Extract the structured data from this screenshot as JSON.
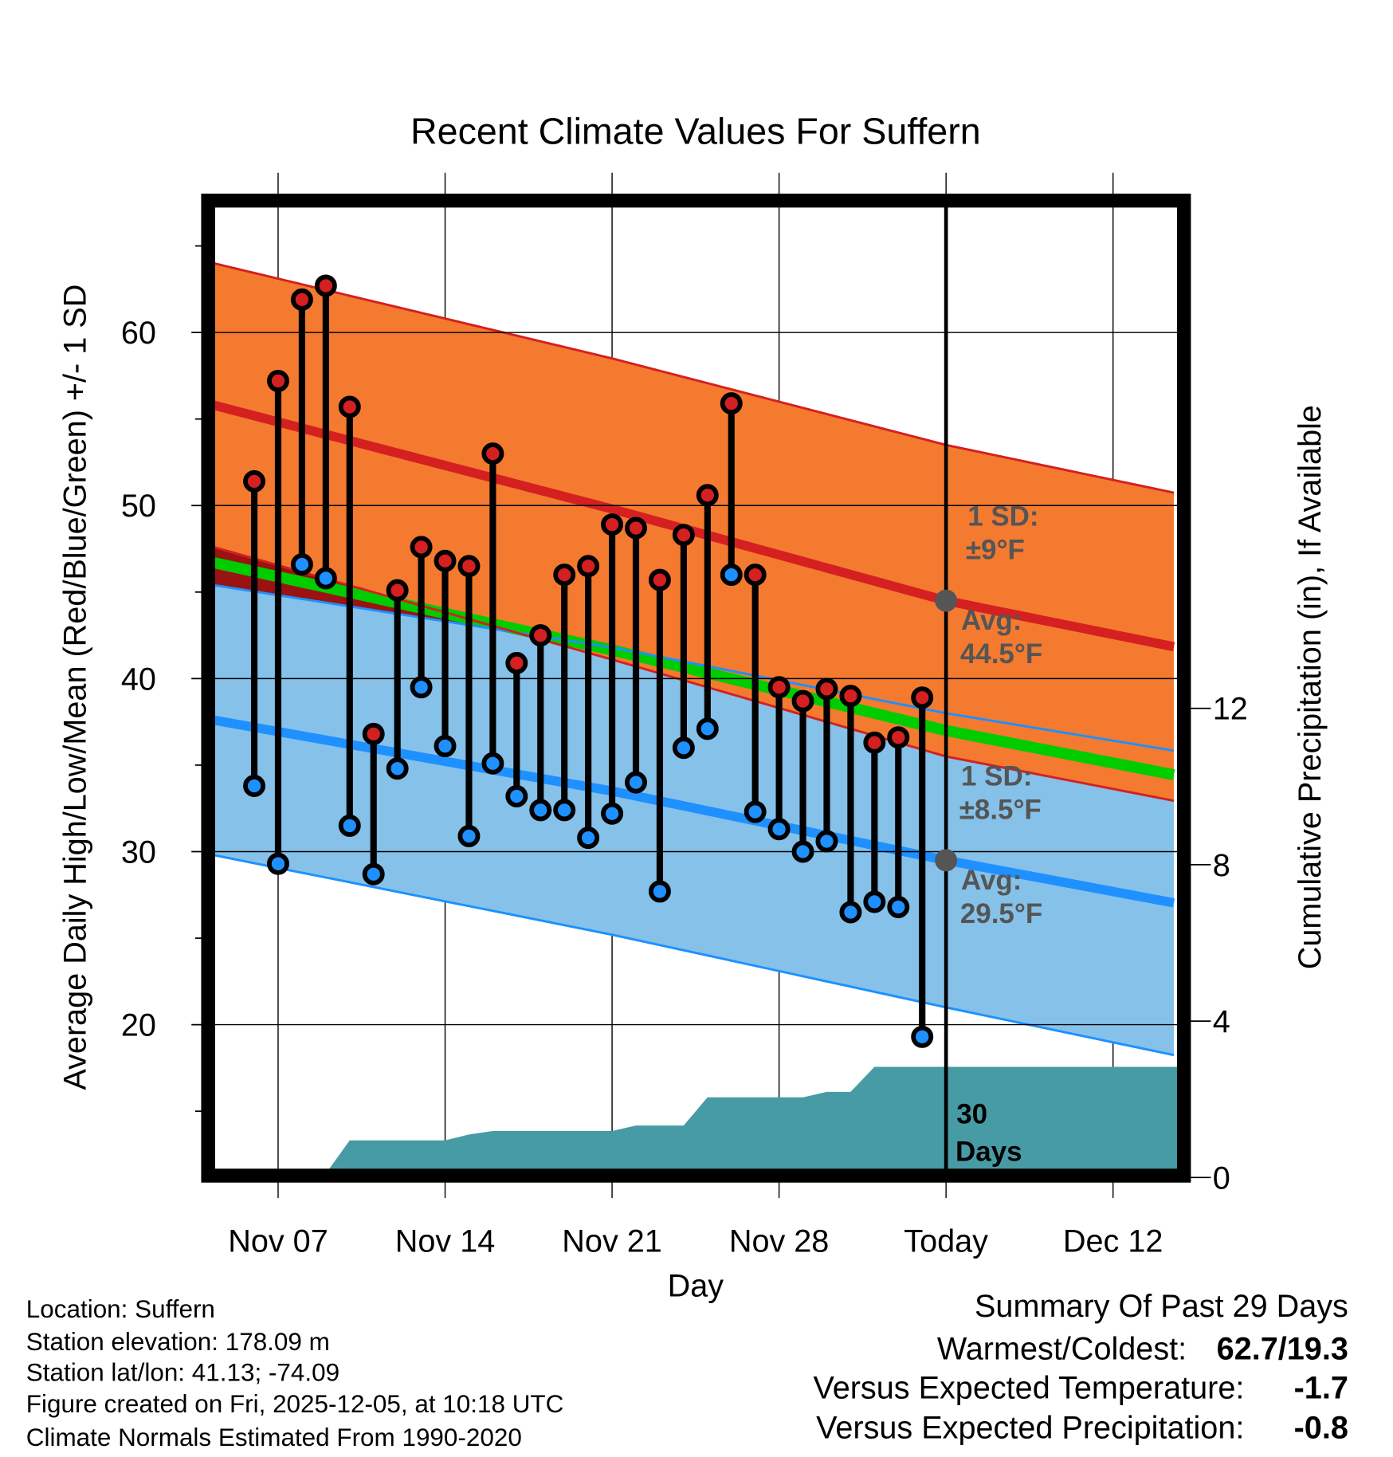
{
  "chart_data": {
    "type": "line",
    "title": "Recent Climate Values For Suffern",
    "xlabel": "Day",
    "ylabel": "Average Daily High/Low/Mean (Red/Blue/Green) +/- 1 SD",
    "y2label": "Cumulative Precipitation (in), If Available",
    "x_unit": "days from Nov 07",
    "xlim": [
      -2.7,
      37.7
    ],
    "ylim": [
      11.6,
      67.3
    ],
    "y2lim": [
      0,
      16
    ],
    "grid": true,
    "x_ticks": [
      {
        "day": 0,
        "label": "Nov 07"
      },
      {
        "day": 7,
        "label": "Nov 14"
      },
      {
        "day": 14,
        "label": "Nov 21"
      },
      {
        "day": 21,
        "label": "Nov 28"
      },
      {
        "day": 28,
        "label": "Today"
      },
      {
        "day": 35,
        "label": "Dec 12"
      }
    ],
    "y_ticks": [
      20,
      30,
      40,
      50,
      60
    ],
    "y_ticks_labels": [
      "20",
      "30",
      "40",
      "50",
      "60"
    ],
    "y2_ticks_labels": [
      "0",
      "4",
      "8",
      "12"
    ],
    "y2_ticks": [
      0,
      4,
      8,
      12
    ],
    "today_day": 28,
    "observations": {
      "days": [
        -1,
        0,
        1,
        2,
        3,
        4,
        5,
        6,
        7,
        8,
        9,
        10,
        11,
        12,
        13,
        14,
        15,
        16,
        17,
        18,
        19,
        20,
        21,
        22,
        23,
        24,
        25,
        26,
        27
      ],
      "high": [
        51.4,
        57.2,
        61.9,
        62.7,
        55.7,
        36.8,
        45.1,
        47.6,
        46.8,
        46.5,
        53.0,
        40.9,
        42.5,
        46.0,
        46.5,
        48.9,
        48.7,
        45.7,
        48.3,
        50.6,
        55.9,
        46.0,
        39.5,
        38.7,
        39.4,
        39.0,
        36.3,
        36.6,
        38.9
      ],
      "low": [
        33.8,
        29.3,
        46.6,
        45.8,
        31.5,
        28.7,
        34.8,
        39.5,
        36.1,
        30.9,
        35.1,
        33.2,
        32.4,
        32.4,
        30.8,
        32.2,
        34.0,
        27.7,
        36.0,
        37.1,
        46.0,
        32.3,
        31.3,
        30.0,
        30.6,
        26.5,
        27.1,
        26.8,
        19.3
      ]
    },
    "normals": {
      "days": [
        -2.7,
        14,
        28,
        37.7
      ],
      "high_avg": [
        55.8,
        49.8,
        44.5,
        41.8
      ],
      "high_sd": [
        8.2,
        8.7,
        9.0,
        8.9
      ],
      "low_avg": [
        37.6,
        33.5,
        29.5,
        27.0
      ],
      "low_sd": [
        7.8,
        8.3,
        8.5,
        8.8
      ]
    },
    "precip_cumulative": {
      "days": [
        -1,
        0,
        1,
        2,
        3,
        4,
        5,
        6,
        7,
        8,
        9,
        10,
        11,
        12,
        13,
        14,
        15,
        16,
        17,
        18,
        19,
        20,
        21,
        22,
        23,
        24,
        25,
        26,
        27
      ],
      "values": [
        0,
        0,
        0.02,
        0.1,
        0.95,
        0.95,
        0.95,
        0.95,
        0.95,
        1.1,
        1.19,
        1.19,
        1.19,
        1.19,
        1.19,
        1.19,
        1.33,
        1.33,
        1.33,
        2.05,
        2.05,
        2.05,
        2.05,
        2.05,
        2.19,
        2.19,
        2.83,
        2.83,
        2.83
      ]
    },
    "annotations": {
      "high_sd_l1": "1 SD:",
      "high_sd_l2": "±9°F",
      "high_avg_l1": "Avg:",
      "high_avg_l2": "44.5°F",
      "low_sd_l1": "1 SD:",
      "low_sd_l2": "±8.5°F",
      "low_avg_l1": "Avg:",
      "low_avg_l2": "29.5°F",
      "days_l1": "30",
      "days_l2": "Days"
    },
    "colors": {
      "high": "#d42020",
      "low": "#1e90ff",
      "mean": "#00cc00",
      "high_band": "#f47a30",
      "low_band": "#85c1e9",
      "overlap": "#9b1212",
      "precip": "#479ba5",
      "marker": "#555555"
    }
  },
  "footer": {
    "location": "Location: Suffern",
    "elevation": "Station elevation: 178.09 m",
    "latlon": "Station lat/lon: 41.13; -74.09",
    "created": "Figure created on Fri, 2025-12-05, at 10:18 UTC",
    "normals": "Climate Normals Estimated From 1990-2020"
  },
  "summary": {
    "title": "Summary Of Past 29 Days",
    "warmest_label": "Warmest/Coldest:",
    "warmest_value": "62.7/19.3",
    "temp_label": "Versus Expected Temperature:",
    "temp_value": "-1.7",
    "temp_color": "#1e90ff",
    "precip_label": "Versus Expected Precipitation:",
    "precip_value": "-0.8",
    "precip_color": "#a0522d"
  }
}
